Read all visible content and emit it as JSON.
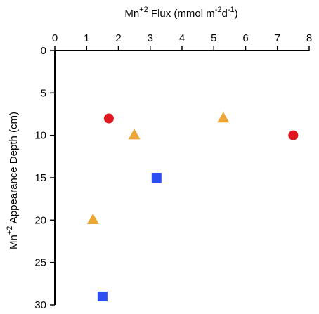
{
  "chart_data": {
    "type": "scatter",
    "title": "",
    "xlabel": {
      "base": "Mn",
      "sup1": "+2",
      "mid": " Flux (mmol m",
      "sup2": "-2",
      "mid2": "d",
      "sup3": "-1",
      "end": ")"
    },
    "ylabel": {
      "base": "Mn",
      "sup": "+2",
      "end": " Appearance Depth (cm)"
    },
    "xlim": [
      0,
      8
    ],
    "ylim": [
      0,
      30
    ],
    "y_inverted": true,
    "x_axis_position": "top",
    "x_ticks": [
      "0",
      "1",
      "2",
      "3",
      "4",
      "5",
      "6",
      "7",
      "8"
    ],
    "y_ticks": [
      "0",
      "5",
      "10",
      "15",
      "20",
      "25",
      "30"
    ],
    "grid": false,
    "legend": "none",
    "series": [
      {
        "marker": "circle",
        "color": "#e0171f",
        "points": [
          {
            "x": 1.7,
            "y": 8
          },
          {
            "x": 7.5,
            "y": 10
          }
        ]
      },
      {
        "marker": "triangle",
        "color": "#eca637",
        "points": [
          {
            "x": 2.5,
            "y": 10
          },
          {
            "x": 5.3,
            "y": 8
          },
          {
            "x": 1.2,
            "y": 20
          }
        ]
      },
      {
        "marker": "square",
        "color": "#2c4ff2",
        "points": [
          {
            "x": 3.2,
            "y": 15
          },
          {
            "x": 1.5,
            "y": 29
          }
        ]
      }
    ]
  }
}
